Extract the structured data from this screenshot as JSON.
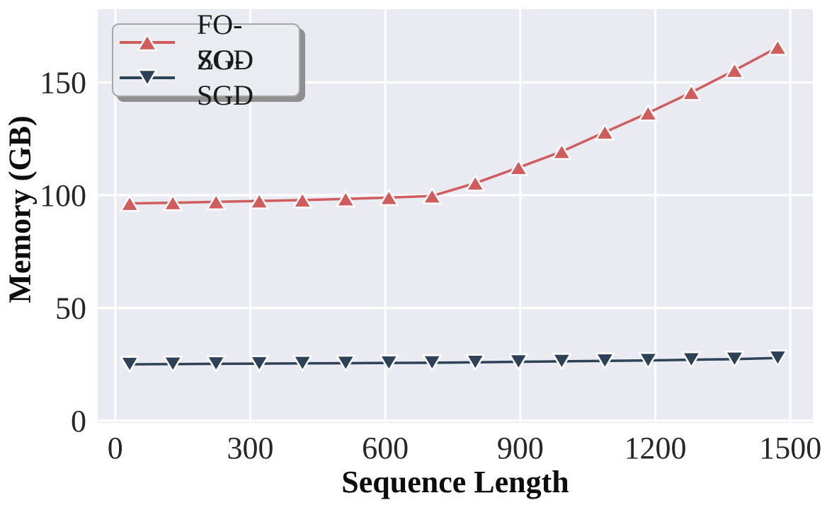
{
  "figure": {
    "background": "#ffffff",
    "plot_background": "#eaeaf2",
    "grid_color": "#ffffff",
    "tick_label_color": "#262626",
    "axis_label_color": "#0d0d0d"
  },
  "legend": {
    "position": "upper-left",
    "background": "#ebebf2",
    "border_color": "#a6a6a6",
    "shadow_color": "#8f8f8f"
  },
  "chart_data": {
    "type": "line",
    "title": "",
    "xlabel": "Sequence Length",
    "ylabel": "Memory (GB)",
    "x": [
      32,
      128,
      224,
      320,
      416,
      512,
      608,
      704,
      800,
      896,
      992,
      1088,
      1184,
      1280,
      1376,
      1472
    ],
    "series": [
      {
        "name": "FO-SGD",
        "color": "#cf5d5d",
        "marker": "triangle-up",
        "values": [
          96.3,
          96.6,
          97.0,
          97.4,
          97.8,
          98.3,
          98.9,
          99.6,
          105.3,
          112.2,
          119.3,
          127.9,
          136.4,
          145.5,
          155.3,
          165.5
        ]
      },
      {
        "name": "ZO-SGD",
        "color": "#2d4257",
        "marker": "triangle-down",
        "values": [
          25.0,
          25.1,
          25.2,
          25.3,
          25.4,
          25.5,
          25.6,
          25.7,
          25.9,
          26.1,
          26.3,
          26.5,
          26.7,
          27.0,
          27.3,
          27.8
        ]
      }
    ],
    "xticks": [
      0,
      300,
      600,
      900,
      1200,
      1500
    ],
    "yticks": [
      0,
      50,
      100,
      150
    ],
    "xlim": [
      -39,
      1550
    ],
    "ylim": [
      -1,
      182.4
    ],
    "grid": true,
    "legend_position": "upper-left"
  }
}
